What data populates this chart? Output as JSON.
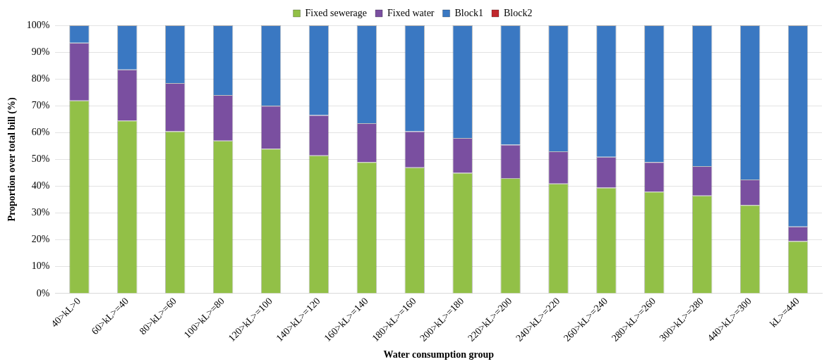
{
  "chart_data": {
    "type": "bar",
    "stacked": true,
    "xlabel": "Water consumption group",
    "ylabel": "Proportion over total bill (%)",
    "categories": [
      "40>kL>0",
      "60>kL>=40",
      "80>kL>=60",
      "100>kL>=80",
      "120>kL>=100",
      "140>kL>=120",
      "160>kL>=140",
      "180>kL>=160",
      "200>kL>=180",
      "220>kL>=200",
      "240>kL>=220",
      "260>kL>=240",
      "280>kL>=260",
      "300>kL>=280",
      "440>kL>=300",
      "kL>=440"
    ],
    "series": [
      {
        "name": "Fixed sewerage",
        "color": "#92c047",
        "values": [
          72,
          64.5,
          60.5,
          57,
          54,
          51.5,
          49,
          47,
          45,
          43,
          41,
          39.5,
          38,
          36.5,
          33,
          19.5
        ]
      },
      {
        "name": "Fixed water",
        "color": "#7a4fa0",
        "values": [
          21.5,
          19,
          18,
          17,
          16,
          15,
          14.5,
          13.5,
          13,
          12.5,
          12,
          11.5,
          11,
          11,
          9.5,
          5.5
        ]
      },
      {
        "name": "Block1",
        "color": "#3a78c2",
        "values": [
          6.5,
          16.5,
          21.5,
          26,
          30,
          33.5,
          36.5,
          39.5,
          42,
          44.5,
          47,
          49,
          51,
          52.5,
          57.5,
          75
        ]
      },
      {
        "name": "Block2",
        "color": "#c0282d",
        "values": [
          0,
          0,
          0,
          0,
          0,
          0,
          0,
          0,
          0,
          0,
          0,
          0,
          0,
          0,
          0,
          0
        ]
      }
    ],
    "ylim": [
      0,
      100
    ],
    "yticks": [
      {
        "value": 0,
        "label": "0%"
      },
      {
        "value": 10,
        "label": "10%"
      },
      {
        "value": 20,
        "label": "20%"
      },
      {
        "value": 30,
        "label": "30%"
      },
      {
        "value": 40,
        "label": "40%"
      },
      {
        "value": 50,
        "label": "50%"
      },
      {
        "value": 60,
        "label": "60%"
      },
      {
        "value": 70,
        "label": "70%"
      },
      {
        "value": 80,
        "label": "80%"
      },
      {
        "value": 90,
        "label": "90%"
      },
      {
        "value": 100,
        "label": "100%"
      }
    ],
    "grid": "y",
    "legend": "top"
  }
}
